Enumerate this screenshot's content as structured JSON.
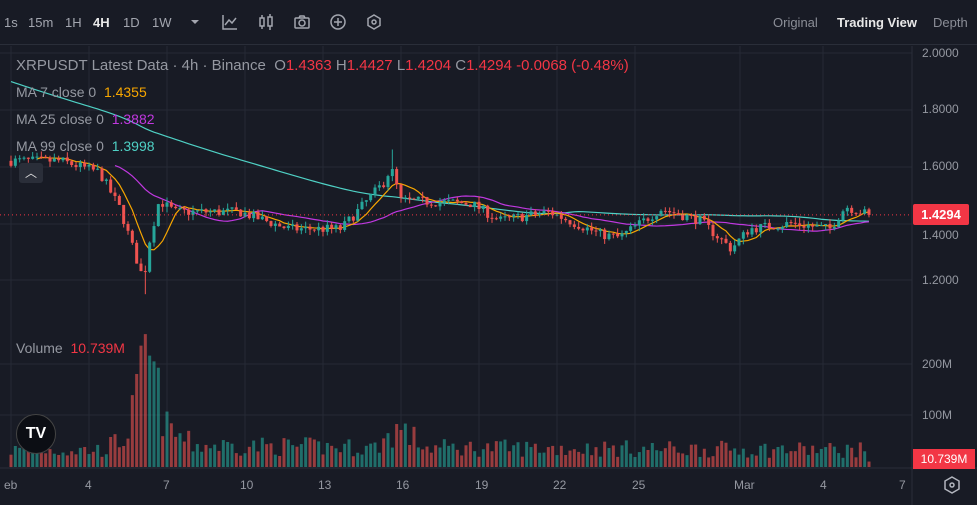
{
  "toolbar": {
    "timeframes": [
      "1s",
      "15m",
      "1H",
      "4H",
      "1D",
      "1W"
    ],
    "active_timeframe": "4H",
    "views": [
      "Original",
      "Trading View",
      "Depth"
    ],
    "active_view": "Trading View"
  },
  "legend": {
    "title": "XRPUSDT Latest Data · 4h · Binance",
    "o_label": "O",
    "o": "1.4363",
    "h_label": "H",
    "h": "1.4427",
    "l_label": "L",
    "l": "1.4204",
    "c_label": "C",
    "c": "1.4294",
    "change": "-0.0068 (-0.48%)",
    "ma7_label": "MA 7 close 0",
    "ma7": "1.4355",
    "ma25_label": "MA 25 close 0",
    "ma25": "1.3882",
    "ma99_label": "MA 99 close 0",
    "ma99": "1.3998",
    "volume_label": "Volume",
    "volume": "10.739M"
  },
  "axis": {
    "price_ticks": [
      "2.0000",
      "1.8000",
      "1.6000",
      "1.4000",
      "1.2000"
    ],
    "volume_ticks": [
      "200M",
      "100M"
    ],
    "current_price": "1.4294",
    "current_volume": "10.739M",
    "date_ticks": [
      "eb",
      "4",
      "7",
      "10",
      "13",
      "16",
      "19",
      "22",
      "25",
      "Mar",
      "4",
      "7"
    ]
  },
  "colors": {
    "up": "#26a69a",
    "down": "#ef5350",
    "ma7": "#f7a600",
    "ma25": "#c038e0",
    "ma99": "#4fd1c5",
    "accent": "#f23645"
  },
  "chart_data": {
    "type": "candlestick",
    "symbol": "XRPUSDT",
    "interval": "4h",
    "ylim": [
      1.1,
      2.05
    ],
    "close_path_day_price": [
      [
        0,
        1.62
      ],
      [
        1.9,
        1.62
      ],
      [
        3.4,
        1.58
      ],
      [
        4.2,
        1.45
      ],
      [
        4.8,
        1.28
      ],
      [
        5.1,
        1.2
      ],
      [
        5.35,
        1.35
      ],
      [
        5.7,
        1.48
      ],
      [
        6.3,
        1.44
      ],
      [
        8.8,
        1.44
      ],
      [
        10.7,
        1.38
      ],
      [
        12.7,
        1.38
      ],
      [
        13.4,
        1.45
      ],
      [
        14.4,
        1.55
      ],
      [
        14.6,
        1.6
      ],
      [
        15.0,
        1.48
      ],
      [
        17.7,
        1.47
      ],
      [
        18.8,
        1.41
      ],
      [
        20.7,
        1.44
      ],
      [
        22.7,
        1.36
      ],
      [
        23.4,
        1.35
      ],
      [
        25.0,
        1.45
      ],
      [
        26.5,
        1.41
      ],
      [
        27.7,
        1.31
      ],
      [
        28.4,
        1.38
      ],
      [
        30.0,
        1.4
      ],
      [
        31.5,
        1.38
      ],
      [
        32.1,
        1.46
      ],
      [
        33.0,
        1.43
      ]
    ],
    "volume_path_day_millions": [
      [
        0,
        35
      ],
      [
        3.5,
        35
      ],
      [
        4.4,
        60
      ],
      [
        4.9,
        150
      ],
      [
        5.2,
        245
      ],
      [
        5.6,
        160
      ],
      [
        6.0,
        80
      ],
      [
        7,
        45
      ],
      [
        14,
        40
      ],
      [
        14.9,
        80
      ],
      [
        16,
        40
      ],
      [
        33,
        35
      ]
    ]
  }
}
